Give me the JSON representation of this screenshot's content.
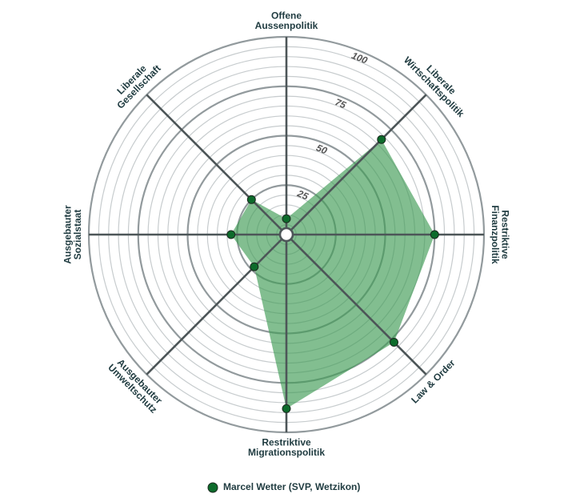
{
  "chart_data": {
    "type": "radar",
    "axes": [
      {
        "label_lines": [
          "Offene",
          "Aussenpolitik"
        ]
      },
      {
        "label_lines": [
          "Liberale",
          "Wirtschaftspolitik"
        ]
      },
      {
        "label_lines": [
          "Restriktive",
          "Finanzpolitik"
        ]
      },
      {
        "label_lines": [
          "Law & Order"
        ]
      },
      {
        "label_lines": [
          "Restriktive",
          "Migrationspolitik"
        ]
      },
      {
        "label_lines": [
          "Ausgebauter",
          "Umweltschutz"
        ]
      },
      {
        "label_lines": [
          "Ausgebauter",
          "Sozialstaat"
        ]
      },
      {
        "label_lines": [
          "Liberale",
          "Gesellschaft"
        ]
      }
    ],
    "rlim": [
      0,
      100
    ],
    "ticks": [
      25,
      50,
      75,
      100
    ],
    "series": [
      {
        "name": "Marcel Wetter (SVP, Wetzikon)",
        "values": [
          8,
          68,
          75,
          77,
          88,
          23,
          28,
          25
        ]
      }
    ],
    "colors": {
      "fill": "#3f9b55",
      "marker": "#0d6b2b",
      "axis": "#4d5658",
      "grid_light": "#c7ccce",
      "grid_major": "#929a9d"
    },
    "legend_position": "bottom-center"
  }
}
